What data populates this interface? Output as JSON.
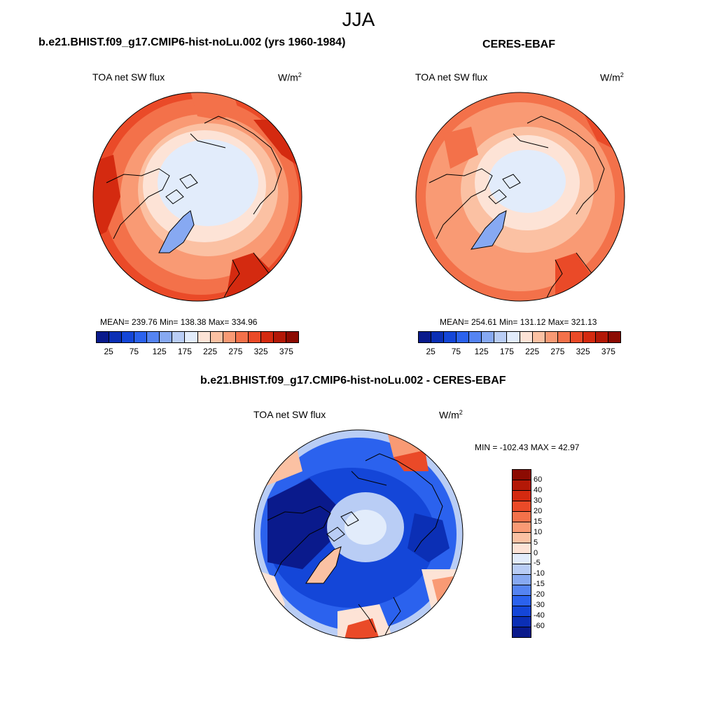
{
  "season": "JJA",
  "top_left": {
    "title": "b.e21.BHIST.f09_g17.CMIP6-hist-noLu.002 (yrs 1960-1984)",
    "variable": "TOA net SW flux",
    "unit_base": "W/m",
    "unit_exp": "2",
    "stats": "MEAN= 239.76  Min= 138.38  Max= 334.96"
  },
  "top_right": {
    "title": "CERES-EBAF",
    "variable": "TOA net SW flux",
    "unit_base": "W/m",
    "unit_exp": "2",
    "stats": "MEAN= 254.61  Min= 131.12  Max= 321.13"
  },
  "bottom": {
    "title": "b.e21.BHIST.f09_g17.CMIP6-hist-noLu.002 - CERES-EBAF",
    "variable": "TOA net SW flux",
    "unit_base": "W/m",
    "unit_exp": "2",
    "stats": "MIN = -102.43 MAX =  42.97"
  },
  "abs_colorbar": {
    "labels": [
      "25",
      "75",
      "125",
      "175",
      "225",
      "275",
      "325",
      "375"
    ],
    "colors": [
      "#0a1a8c",
      "#0b2fb5",
      "#1446d8",
      "#2b62ee",
      "#5584f2",
      "#87a9f2",
      "#b9cdf5",
      "#e2ecfb",
      "#fde3d6",
      "#fbc1a3",
      "#f99a74",
      "#f3714a",
      "#ea4a28",
      "#d42a10",
      "#b31807",
      "#8c0b02"
    ]
  },
  "diff_colorbar": {
    "labels": [
      "60",
      "40",
      "30",
      "20",
      "15",
      "10",
      "5",
      "0",
      "-5",
      "-10",
      "-15",
      "-20",
      "-30",
      "-40",
      "-60"
    ],
    "colors": [
      "#8c0b02",
      "#b31807",
      "#d42a10",
      "#ea4a28",
      "#f3714a",
      "#f99a74",
      "#fbc1a3",
      "#fde3d6",
      "#e2ecfb",
      "#b9cdf5",
      "#87a9f2",
      "#5584f2",
      "#2b62ee",
      "#1446d8",
      "#0b2fb5",
      "#0a1a8c"
    ]
  }
}
